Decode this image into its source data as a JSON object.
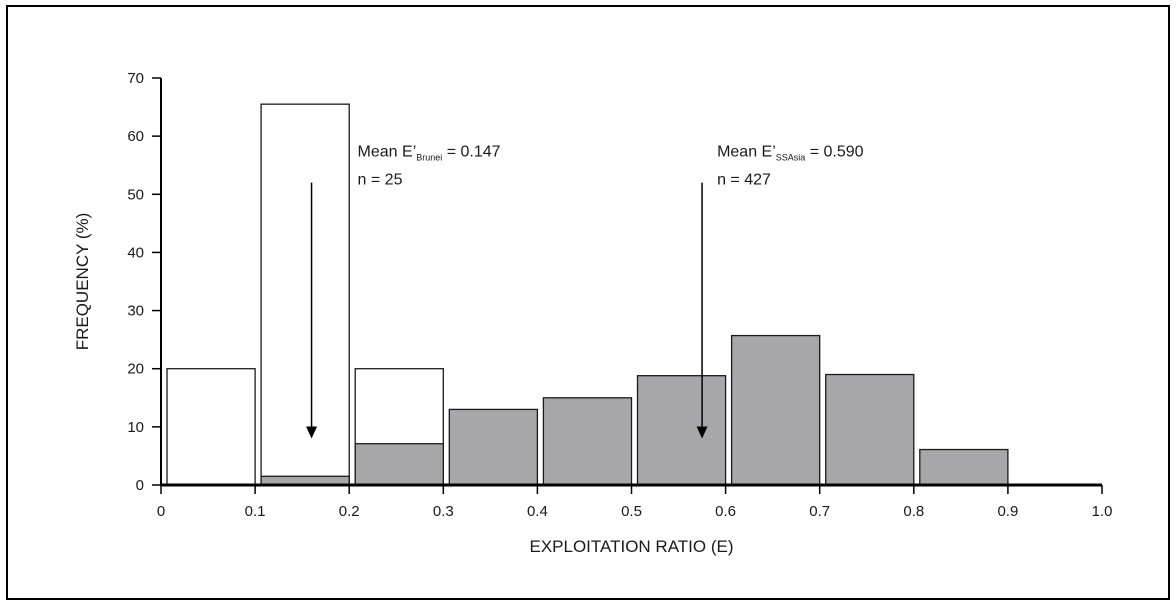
{
  "chart_data": {
    "type": "bar",
    "xlabel": "EXPLOITATION RATIO (E)",
    "ylabel": "FREQUENCY (%)",
    "xlim": [
      0,
      1.0
    ],
    "ylim": [
      0,
      70
    ],
    "x_ticks": [
      "0",
      "0.1",
      "0.2",
      "0.3",
      "0.4",
      "0.5",
      "0.6",
      "0.7",
      "0.8",
      "0.9",
      "1.0"
    ],
    "y_ticks": [
      "0",
      "10",
      "20",
      "30",
      "40",
      "50",
      "60",
      "70"
    ],
    "bin_edges": [
      0,
      0.1,
      0.2,
      0.3,
      0.4,
      0.5,
      0.6,
      0.7,
      0.8,
      0.9,
      1.0
    ],
    "series": [
      {
        "fill": "#ffffff",
        "values": [
          20,
          65.5,
          20,
          0,
          0,
          0,
          0,
          0,
          0,
          0
        ]
      },
      {
        "fill": "#a7a7aa",
        "values": [
          0,
          1.5,
          7.1,
          13,
          15,
          18.8,
          25.7,
          19,
          6.1,
          0
        ]
      }
    ],
    "annotations": [
      {
        "line1_prefix": "Mean E’",
        "line1_sub": "Brunei",
        "line1_suffix": " = 0.147",
        "line2": "n = 25",
        "arrow_x": 0.16,
        "arrow_from_y": 52,
        "arrow_to_y": 8
      },
      {
        "line1_prefix": "Mean E’",
        "line1_sub": "SSAsia",
        "line1_suffix": " = 0.590",
        "line2": "n = 427",
        "arrow_x": 0.575,
        "arrow_from_y": 52,
        "arrow_to_y": 8
      }
    ]
  }
}
